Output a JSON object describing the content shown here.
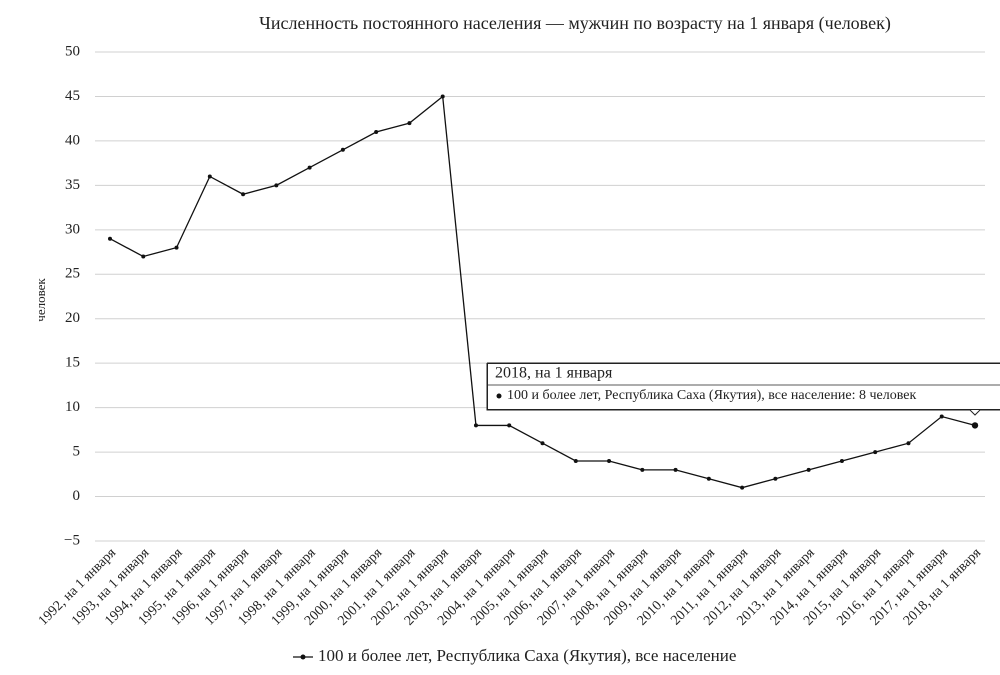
{
  "chart_data": {
    "type": "line",
    "title": "Численность постоянного населения — мужчин по возрасту на 1 января (человек)",
    "y_label": "человек",
    "categories": [
      "1992, на 1 января",
      "1993, на 1 января",
      "1994, на 1 января",
      "1995, на 1 января",
      "1996, на 1 января",
      "1997, на 1 января",
      "1998, на 1 января",
      "1999, на 1 января",
      "2000, на 1 января",
      "2001, на 1 января",
      "2002, на 1 января",
      "2003, на 1 января",
      "2004, на 1 января",
      "2005, на 1 января",
      "2006, на 1 января",
      "2007, на 1 января",
      "2008, на 1 января",
      "2009, на 1 января",
      "2010, на 1 января",
      "2011, на 1 января",
      "2012, на 1 января",
      "2013, на 1 января",
      "2014, на 1 января",
      "2015, на 1 января",
      "2016, на 1 января",
      "2017, на 1 января",
      "2018, на 1 января"
    ],
    "series": [
      {
        "name": "100 и более лет, Республика Саха (Якутия), все население",
        "color": "#111111",
        "values": [
          29,
          27,
          28,
          36,
          34,
          35,
          37,
          39,
          41,
          42,
          45,
          8,
          8,
          6,
          4,
          4,
          3,
          3,
          2,
          1,
          2,
          3,
          4,
          5,
          6,
          9,
          8
        ]
      }
    ],
    "ylim": [
      -5,
      50
    ],
    "yticks": [
      {
        "value": -5,
        "label": "−5"
      },
      0,
      5,
      10,
      15,
      20,
      25,
      30,
      35,
      40,
      45,
      50
    ],
    "grid": true,
    "legend": "bottom",
    "tooltip": {
      "title": "2018, на 1 января",
      "text": "100 и более лет, Республика Саха (Якутия), все население: 8 человек"
    }
  }
}
